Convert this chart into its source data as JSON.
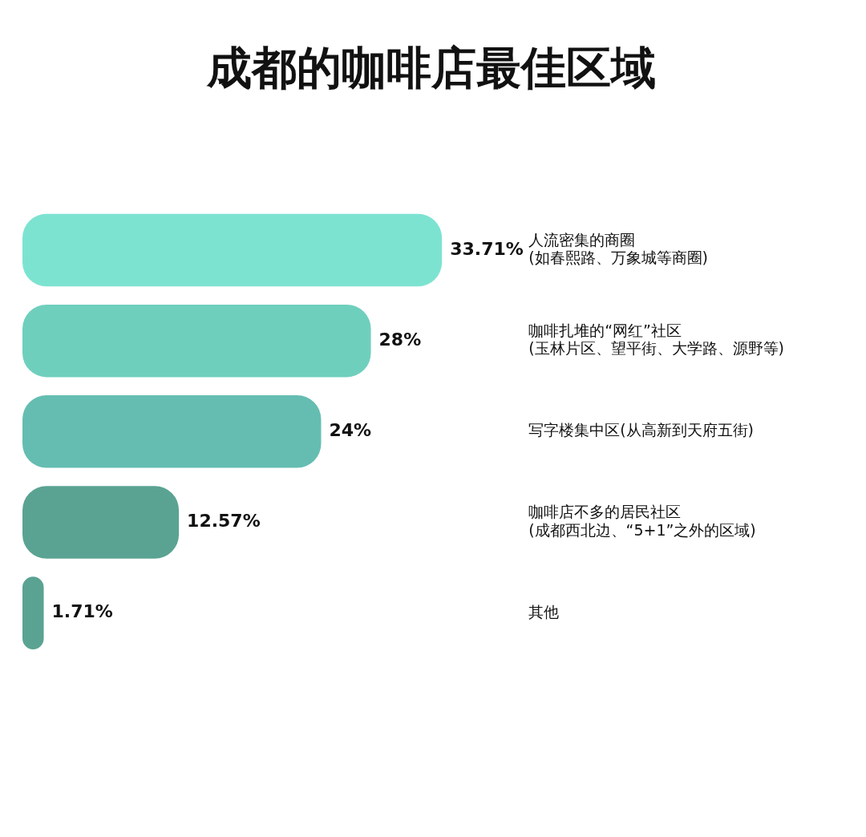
{
  "chart_data": {
    "type": "bar",
    "orientation": "horizontal",
    "title": "成都的咖啡店最佳区域",
    "categories": [
      "人流密集的商圈\n(如春熙路、万象城等商圈)",
      "咖啡扎堆的“网红”社区\n(玉林片区、望平街、大学路、源野等)",
      "写字楼集中区(从高新到天府五街)",
      "咖啡店不多的居民社区\n(成都西北边、“5+1”之外的区域)",
      "其他"
    ],
    "values": [
      33.71,
      28,
      24,
      12.57,
      1.71
    ],
    "value_labels": [
      "33.71%",
      "28%",
      "24%",
      "12.57%",
      "1.71%"
    ],
    "colors": [
      "#7de3d1",
      "#6fcfbd",
      "#65bdb1",
      "#5aa392",
      "#5aa392"
    ],
    "tick_labels": "y"
  }
}
